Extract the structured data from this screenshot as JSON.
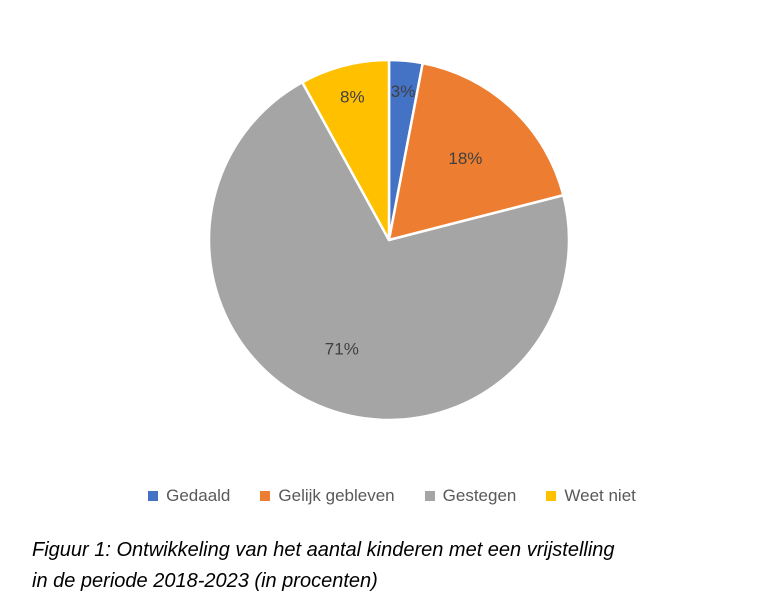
{
  "chart_data": {
    "type": "pie",
    "categories": [
      "Gedaald",
      "Gelijk gebleven",
      "Gestegen",
      "Weet niet"
    ],
    "values": [
      3,
      18,
      71,
      8
    ],
    "value_labels": [
      "3%",
      "18%",
      "71%",
      "8%"
    ],
    "colors": [
      "#4472C4",
      "#ED7D31",
      "#A5A5A5",
      "#FFC000"
    ],
    "start_angle": "12 o'clock",
    "direction": "clockwise",
    "legend_position": "bottom"
  },
  "caption": {
    "line1": "Figuur 1: Ontwikkeling van het aantal kinderen met een vrijstelling",
    "line2": "in de periode 2018-2023 (in procenten)"
  }
}
